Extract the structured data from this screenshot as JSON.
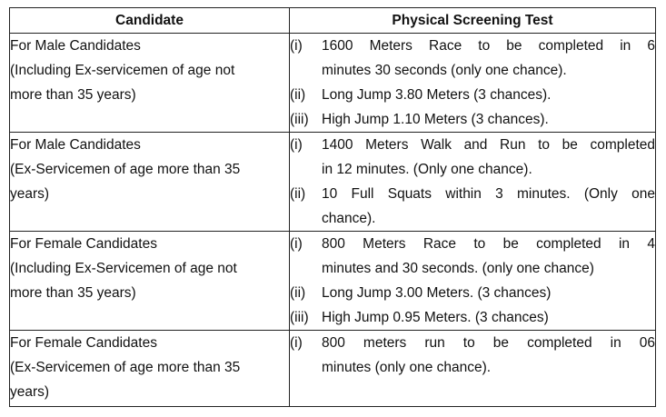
{
  "table": {
    "headers": [
      "Candidate",
      "Physical Screening Test"
    ],
    "rows": [
      {
        "candidate": [
          "For Male Candidates",
          "(Including Ex-servicemen of age not",
          "more than 35 years)"
        ],
        "tests": [
          {
            "num": "(i)",
            "lines": [
              "1600 Meters Race to be completed in 6",
              "minutes 30 seconds (only one chance)."
            ]
          },
          {
            "num": "(ii)",
            "lines": [
              "Long Jump 3.80 Meters (3 chances)."
            ]
          },
          {
            "num": "(iii)",
            "lines": [
              "High Jump 1.10 Meters (3 chances)."
            ]
          }
        ]
      },
      {
        "candidate": [
          "For Male Candidates",
          "(Ex-Servicemen of age more than 35",
          "years)"
        ],
        "tests": [
          {
            "num": "(i)",
            "lines": [
              "1400 Meters Walk and Run to be completed",
              "in 12 minutes. (Only one chance)."
            ]
          },
          {
            "num": "(ii)",
            "lines": [
              "10 Full Squats within 3 minutes. (Only one",
              "chance)."
            ]
          }
        ]
      },
      {
        "candidate": [
          "For Female Candidates",
          "(Including Ex-Servicemen of age not",
          "more than 35 years)"
        ],
        "tests": [
          {
            "num": "(i)",
            "lines": [
              "800 Meters Race to be completed in 4",
              "minutes and 30 seconds. (only one chance)"
            ]
          },
          {
            "num": "(ii)",
            "lines": [
              "Long Jump 3.00 Meters. (3 chances)"
            ]
          },
          {
            "num": "(iii)",
            "lines": [
              "High Jump 0.95 Meters. (3 chances)"
            ]
          }
        ]
      },
      {
        "candidate": [
          "For Female Candidates",
          "(Ex-Servicemen of age more than 35",
          "years)"
        ],
        "tests": [
          {
            "num": "(i)",
            "lines": [
              "800 meters run to be completed in 06",
              "minutes (only one chance)."
            ]
          }
        ]
      }
    ]
  }
}
